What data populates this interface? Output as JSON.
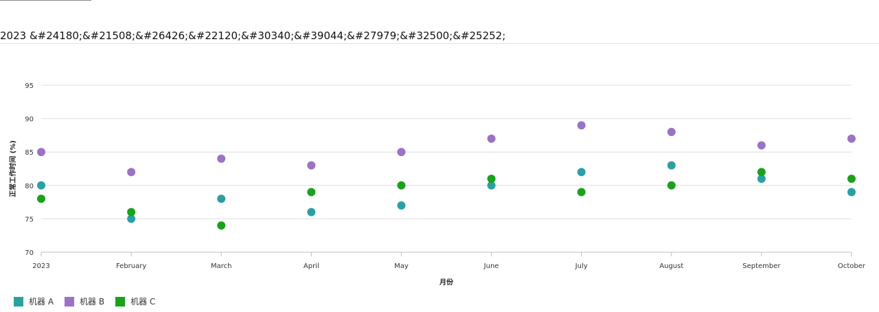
{
  "page": {
    "title": "2023 &#24180;&#21508;&#26426;&#22120;&#30340;&#39044;&#27979;&#32500;&#25252;"
  },
  "chart_data": {
    "type": "scatter",
    "categories": [
      "2023",
      "February",
      "March",
      "April",
      "May",
      "June",
      "July",
      "August",
      "September",
      "October"
    ],
    "series": [
      {
        "name": "机器 A",
        "color": "#2aa0a4",
        "values": [
          80,
          75,
          78,
          76,
          77,
          80,
          82,
          83,
          81,
          79
        ]
      },
      {
        "name": "机器 B",
        "color": "#9b72c4",
        "values": [
          85,
          82,
          84,
          83,
          85,
          87,
          89,
          88,
          86,
          87
        ]
      },
      {
        "name": "机器 C",
        "color": "#1ba11b",
        "values": [
          78,
          76,
          74,
          79,
          80,
          81,
          79,
          80,
          82,
          81
        ]
      }
    ],
    "xlabel": "月份",
    "ylabel": "正常工作时间 (%)",
    "ylim": [
      70,
      95
    ],
    "yticks": [
      70,
      75,
      80,
      85,
      90,
      95
    ],
    "grid": true,
    "legend_position": "bottom-left"
  }
}
